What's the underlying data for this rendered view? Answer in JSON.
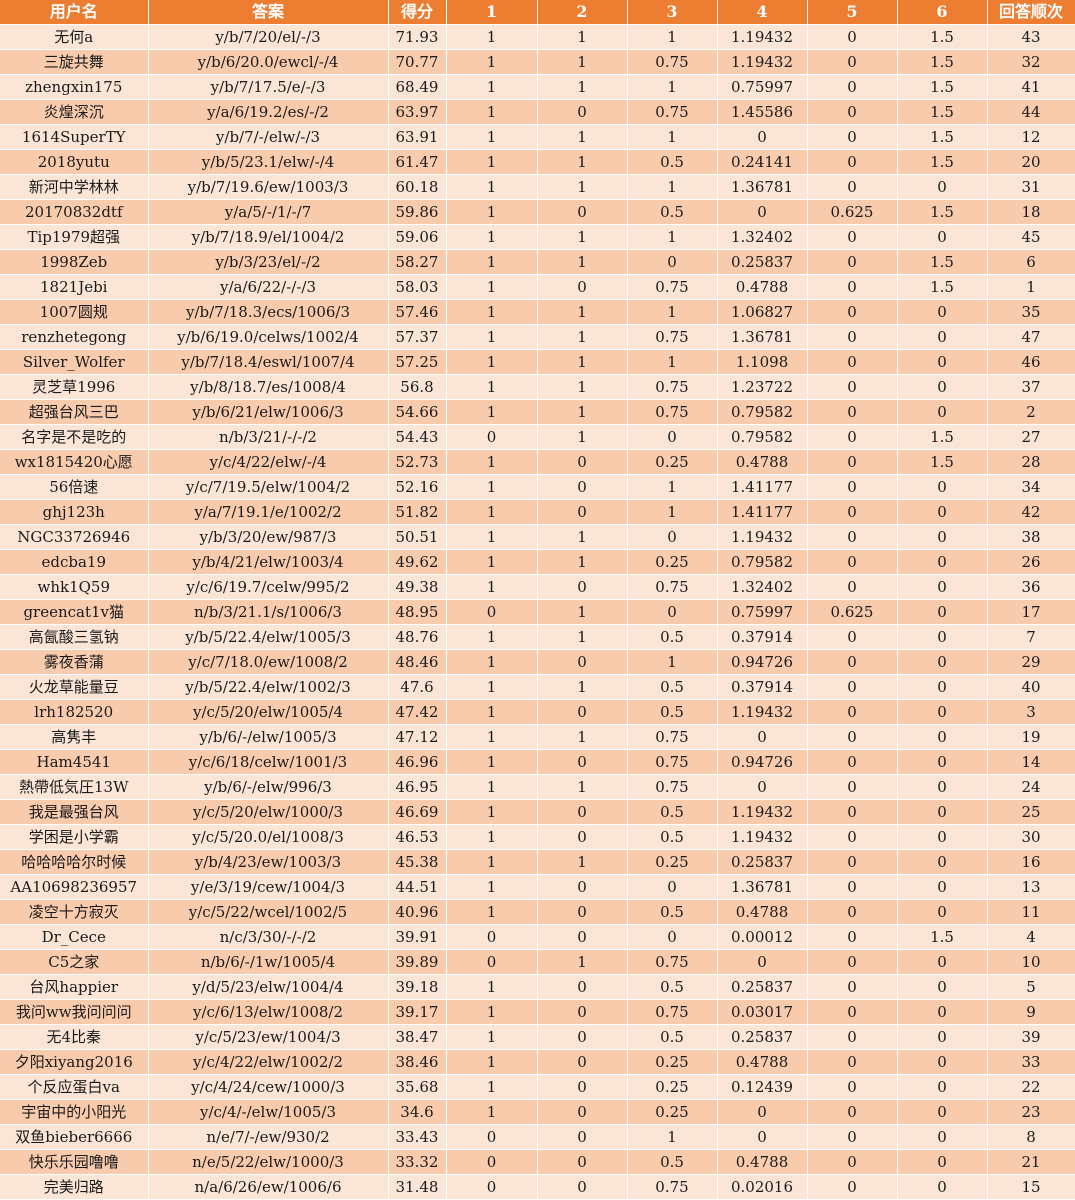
{
  "table": {
    "headers": [
      "用户名",
      "答案",
      "得分",
      "1",
      "2",
      "3",
      "4",
      "5",
      "6",
      "回答顺次"
    ],
    "rows": [
      [
        "无何a",
        "y/b/7/20/el/-/3",
        "71.93",
        "1",
        "1",
        "1",
        "1.19432",
        "0",
        "1.5",
        "43"
      ],
      [
        "三旋共舞",
        "y/b/6/20.0/ewcl/-/4",
        "70.77",
        "1",
        "1",
        "0.75",
        "1.19432",
        "0",
        "1.5",
        "32"
      ],
      [
        "zhengxin175",
        "y/b/7/17.5/e/-/3",
        "68.49",
        "1",
        "1",
        "1",
        "0.75997",
        "0",
        "1.5",
        "41"
      ],
      [
        "炎煌深沉",
        "y/a/6/19.2/es/-/2",
        "63.97",
        "1",
        "0",
        "0.75",
        "1.45586",
        "0",
        "1.5",
        "44"
      ],
      [
        "1614SuperTY",
        "y/b/7/-/elw/-/3",
        "63.91",
        "1",
        "1",
        "1",
        "0",
        "0",
        "1.5",
        "12"
      ],
      [
        "2018yutu",
        "y/b/5/23.1/elw/-/4",
        "61.47",
        "1",
        "1",
        "0.5",
        "0.24141",
        "0",
        "1.5",
        "20"
      ],
      [
        "新河中学林林",
        "y/b/7/19.6/ew/1003/3",
        "60.18",
        "1",
        "1",
        "1",
        "1.36781",
        "0",
        "0",
        "31"
      ],
      [
        "20170832dtf",
        "y/a/5/-/1/-/7",
        "59.86",
        "1",
        "0",
        "0.5",
        "0",
        "0.625",
        "1.5",
        "18"
      ],
      [
        "Tip1979超强",
        "y/b/7/18.9/el/1004/2",
        "59.06",
        "1",
        "1",
        "1",
        "1.32402",
        "0",
        "0",
        "45"
      ],
      [
        "1998Zeb",
        "y/b/3/23/el/-/2",
        "58.27",
        "1",
        "1",
        "0",
        "0.25837",
        "0",
        "1.5",
        "6"
      ],
      [
        "1821Jebi",
        "y/a/6/22/-/-/3",
        "58.03",
        "1",
        "0",
        "0.75",
        "0.4788",
        "0",
        "1.5",
        "1"
      ],
      [
        "1007圆规",
        "y/b/7/18.3/ecs/1006/3",
        "57.46",
        "1",
        "1",
        "1",
        "1.06827",
        "0",
        "0",
        "35"
      ],
      [
        "renzhetegong",
        "y/b/6/19.0/celws/1002/4",
        "57.37",
        "1",
        "1",
        "0.75",
        "1.36781",
        "0",
        "0",
        "47"
      ],
      [
        "Silver_Wolfer",
        "y/b/7/18.4/eswl/1007/4",
        "57.25",
        "1",
        "1",
        "1",
        "1.1098",
        "0",
        "0",
        "46"
      ],
      [
        "灵芝草1996",
        "y/b/8/18.7/es/1008/4",
        "56.8",
        "1",
        "1",
        "0.75",
        "1.23722",
        "0",
        "0",
        "37"
      ],
      [
        "超强台风三巴",
        "y/b/6/21/elw/1006/3",
        "54.66",
        "1",
        "1",
        "0.75",
        "0.79582",
        "0",
        "0",
        "2"
      ],
      [
        "名字是不是吃的",
        "n/b/3/21/-/-/2",
        "54.43",
        "0",
        "1",
        "0",
        "0.79582",
        "0",
        "1.5",
        "27"
      ],
      [
        "wx1815420心愿",
        "y/c/4/22/elw/-/4",
        "52.73",
        "1",
        "0",
        "0.25",
        "0.4788",
        "0",
        "1.5",
        "28"
      ],
      [
        "56倍速",
        "y/c/7/19.5/elw/1004/2",
        "52.16",
        "1",
        "0",
        "1",
        "1.41177",
        "0",
        "0",
        "34"
      ],
      [
        "ghj123h",
        "y/a/7/19.1/e/1002/2",
        "51.82",
        "1",
        "0",
        "1",
        "1.41177",
        "0",
        "0",
        "42"
      ],
      [
        "NGC33726946",
        "y/b/3/20/ew/987/3",
        "50.51",
        "1",
        "1",
        "0",
        "1.19432",
        "0",
        "0",
        "38"
      ],
      [
        "edcba19",
        "y/b/4/21/elw/1003/4",
        "49.62",
        "1",
        "1",
        "0.25",
        "0.79582",
        "0",
        "0",
        "26"
      ],
      [
        "whk1Q59",
        "y/c/6/19.7/celw/995/2",
        "49.38",
        "1",
        "0",
        "0.75",
        "1.32402",
        "0",
        "0",
        "36"
      ],
      [
        "greencat1v猫",
        "n/b/3/21.1/s/1006/3",
        "48.95",
        "0",
        "1",
        "0",
        "0.75997",
        "0.625",
        "0",
        "17"
      ],
      [
        "高氤酸三氢钠",
        "y/b/5/22.4/elw/1005/3",
        "48.76",
        "1",
        "1",
        "0.5",
        "0.37914",
        "0",
        "0",
        "7"
      ],
      [
        "雾夜香蒲",
        "y/c/7/18.0/ew/1008/2",
        "48.46",
        "1",
        "0",
        "1",
        "0.94726",
        "0",
        "0",
        "29"
      ],
      [
        "火龙草能量豆",
        "y/b/5/22.4/elw/1002/3",
        "47.6",
        "1",
        "1",
        "0.5",
        "0.37914",
        "0",
        "0",
        "40"
      ],
      [
        "lrh182520",
        "y/c/5/20/elw/1005/4",
        "47.42",
        "1",
        "0",
        "0.5",
        "1.19432",
        "0",
        "0",
        "3"
      ],
      [
        "高隽丰",
        "y/b/6/-/elw/1005/3",
        "47.12",
        "1",
        "1",
        "0.75",
        "0",
        "0",
        "0",
        "19"
      ],
      [
        "Ham4541",
        "y/c/6/18/celw/1001/3",
        "46.96",
        "1",
        "0",
        "0.75",
        "0.94726",
        "0",
        "0",
        "14"
      ],
      [
        "熱帶低気圧13W",
        "y/b/6/-/elw/996/3",
        "46.95",
        "1",
        "1",
        "0.75",
        "0",
        "0",
        "0",
        "24"
      ],
      [
        "我是最强台风",
        "y/c/5/20/elw/1000/3",
        "46.69",
        "1",
        "0",
        "0.5",
        "1.19432",
        "0",
        "0",
        "25"
      ],
      [
        "学困是小学霸",
        "y/c/5/20.0/el/1008/3",
        "46.53",
        "1",
        "0",
        "0.5",
        "1.19432",
        "0",
        "0",
        "30"
      ],
      [
        "哈哈哈哈尔时候",
        "y/b/4/23/ew/1003/3",
        "45.38",
        "1",
        "1",
        "0.25",
        "0.25837",
        "0",
        "0",
        "16"
      ],
      [
        "AA10698236957",
        "y/e/3/19/cew/1004/3",
        "44.51",
        "1",
        "0",
        "0",
        "1.36781",
        "0",
        "0",
        "13"
      ],
      [
        "凌空十方寂灭",
        "y/c/5/22/wcel/1002/5",
        "40.96",
        "1",
        "0",
        "0.5",
        "0.4788",
        "0",
        "0",
        "11"
      ],
      [
        "Dr_Cece",
        "n/c/3/30/-/-/2",
        "39.91",
        "0",
        "0",
        "0",
        "0.00012",
        "0",
        "1.5",
        "4"
      ],
      [
        "C5之家",
        "n/b/6/-/1w/1005/4",
        "39.89",
        "0",
        "1",
        "0.75",
        "0",
        "0",
        "0",
        "10"
      ],
      [
        "台风happier",
        "y/d/5/23/elw/1004/4",
        "39.18",
        "1",
        "0",
        "0.5",
        "0.25837",
        "0",
        "0",
        "5"
      ],
      [
        "我问ww我问问问",
        "y/c/6/13/elw/1008/2",
        "39.17",
        "1",
        "0",
        "0.75",
        "0.03017",
        "0",
        "0",
        "9"
      ],
      [
        "无4比秦",
        "y/c/5/23/ew/1004/3",
        "38.47",
        "1",
        "0",
        "0.5",
        "0.25837",
        "0",
        "0",
        "39"
      ],
      [
        "夕阳xiyang2016",
        "y/c/4/22/elw/1002/2",
        "38.46",
        "1",
        "0",
        "0.25",
        "0.4788",
        "0",
        "0",
        "33"
      ],
      [
        "个反应蛋白va",
        "y/c/4/24/cew/1000/3",
        "35.68",
        "1",
        "0",
        "0.25",
        "0.12439",
        "0",
        "0",
        "22"
      ],
      [
        "宇宙中的小阳光",
        "y/c/4/-/elw/1005/3",
        "34.6",
        "1",
        "0",
        "0.25",
        "0",
        "0",
        "0",
        "23"
      ],
      [
        "双鱼bieber6666",
        "n/e/7/-/ew/930/2",
        "33.43",
        "0",
        "0",
        "1",
        "0",
        "0",
        "0",
        "8"
      ],
      [
        "快乐乐园噜噜",
        "n/e/5/22/elw/1000/3",
        "33.32",
        "0",
        "0",
        "0.5",
        "0.4788",
        "0",
        "0",
        "21"
      ],
      [
        "完美归路",
        "n/a/6/26/ew/1006/6",
        "31.48",
        "0",
        "0",
        "0.75",
        "0.02016",
        "0",
        "0",
        "15"
      ]
    ]
  }
}
